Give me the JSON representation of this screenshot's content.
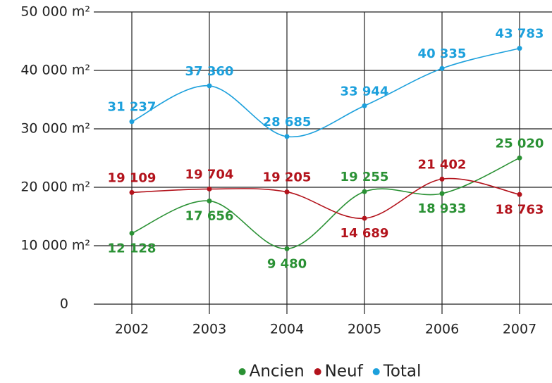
{
  "chart_data": {
    "type": "line",
    "categories": [
      "2002",
      "2003",
      "2004",
      "2005",
      "2006",
      "2007"
    ],
    "series": [
      {
        "name": "Ancien",
        "color": "#2a9134",
        "values": [
          12128,
          17656,
          9480,
          19255,
          18933,
          25020
        ],
        "value_labels": [
          "12 128",
          "17 656",
          "9 480",
          "19 255",
          "18 933",
          "25 020"
        ]
      },
      {
        "name": "Neuf",
        "color": "#b3131c",
        "values": [
          19109,
          19704,
          19205,
          14689,
          21402,
          18763
        ],
        "value_labels": [
          "19 109",
          "19 704",
          "19 205",
          "14 689",
          "21 402",
          "18 763"
        ]
      },
      {
        "name": "Total",
        "color": "#1ca0dc",
        "values": [
          31237,
          37360,
          28685,
          33944,
          40335,
          43783
        ],
        "value_labels": [
          "31 237",
          "37 360",
          "28 685",
          "33 944",
          "40 335",
          "43 783"
        ]
      }
    ],
    "ylim": [
      0,
      50000
    ],
    "yticks": [
      0,
      {
        "value": 10000,
        "label": "10 000 m²"
      },
      {
        "value": 20000,
        "label": "20 000 m²"
      },
      {
        "value": 30000,
        "label": "30 000 m²"
      },
      {
        "value": 40000,
        "label": "40 000 m²"
      },
      {
        "value": 50000,
        "label": "50 000 m²"
      }
    ],
    "grid": true,
    "legend": "bottom"
  }
}
